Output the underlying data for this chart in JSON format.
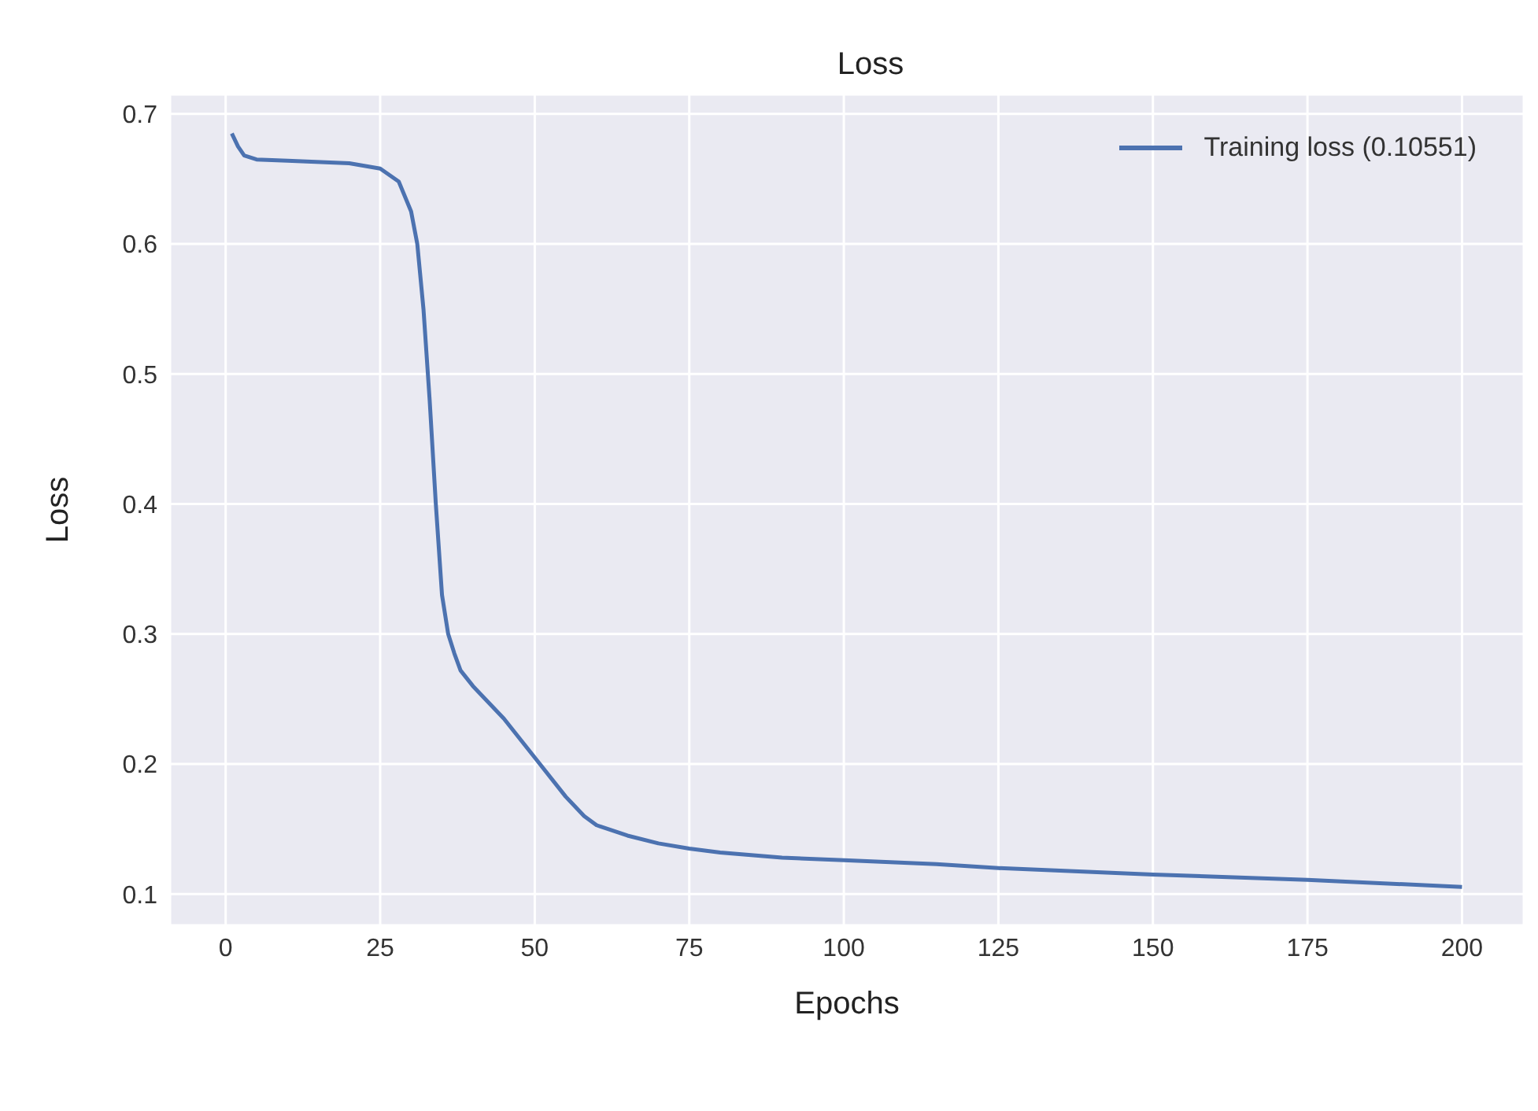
{
  "chart_data": {
    "type": "line",
    "title": "Loss",
    "xlabel": "Epochs",
    "ylabel": "Loss",
    "x": [
      1,
      2,
      3,
      5,
      10,
      20,
      25,
      28,
      30,
      31,
      32,
      33,
      34,
      35,
      36,
      37,
      38,
      40,
      45,
      50,
      55,
      58,
      60,
      65,
      70,
      75,
      80,
      90,
      100,
      115,
      125,
      150,
      175,
      200
    ],
    "series": [
      {
        "name": "Training loss (0.10551)",
        "color": "#4c72b0",
        "values": [
          0.685,
          0.675,
          0.668,
          0.665,
          0.664,
          0.662,
          0.658,
          0.648,
          0.625,
          0.6,
          0.55,
          0.48,
          0.4,
          0.33,
          0.3,
          0.285,
          0.272,
          0.26,
          0.235,
          0.205,
          0.175,
          0.16,
          0.153,
          0.145,
          0.139,
          0.135,
          0.132,
          0.128,
          0.126,
          0.123,
          0.12,
          0.115,
          0.111,
          0.1055
        ]
      }
    ],
    "xlim": [
      -9,
      210
    ],
    "xticks": [
      0,
      25,
      50,
      75,
      100,
      125,
      150,
      175,
      200
    ],
    "ylim": [
      0.076,
      0.715
    ],
    "yticks": [
      0.1,
      0.2,
      0.3,
      0.4,
      0.5,
      0.6,
      0.7
    ],
    "grid": true,
    "legend": "top right",
    "marker": "none",
    "line_style": "solid"
  }
}
